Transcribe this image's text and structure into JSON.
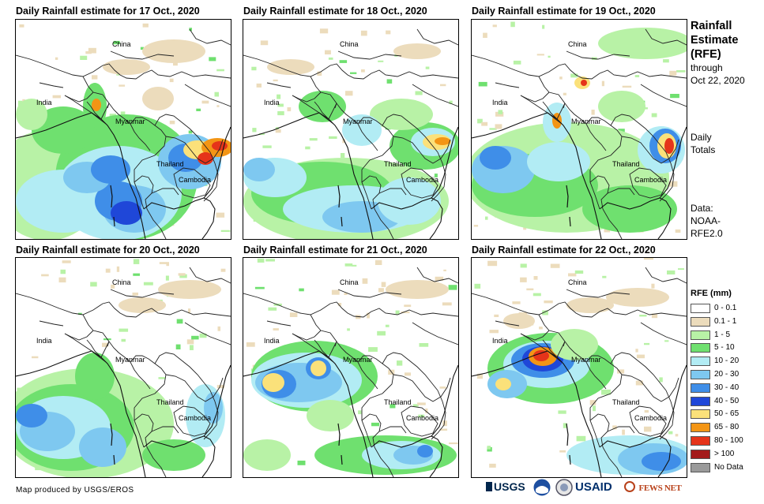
{
  "panels": [
    {
      "title": "Daily Rainfall estimate for 17 Oct., 2020"
    },
    {
      "title": "Daily Rainfall estimate for 18 Oct., 2020"
    },
    {
      "title": "Daily Rainfall estimate for 19 Oct., 2020"
    },
    {
      "title": "Daily Rainfall estimate for 20 Oct., 2020"
    },
    {
      "title": "Daily Rainfall estimate for 21 Oct., 2020"
    },
    {
      "title": "Daily Rainfall estimate for 22 Oct., 2020"
    }
  ],
  "map_labels": {
    "china": "China",
    "india": "India",
    "myanmar": "Myanmar",
    "thailand": "Thailand",
    "cambodia": "Cambodia"
  },
  "sidebar": {
    "title_line1": "Rainfall",
    "title_line2": "Estimate",
    "title_line3": "(RFE)",
    "through": "through",
    "date": "Oct 22, 2020",
    "daily_line1": "Daily",
    "daily_line2": "Totals",
    "data_line1": "Data:",
    "data_line2": "NOAA-",
    "data_line3": "RFE2.0"
  },
  "legend": {
    "title": "RFE (mm)",
    "items": [
      {
        "label": "0 - 0.1",
        "color": "#ffffff"
      },
      {
        "label": "0.1 - 1",
        "color": "#ecdcbc"
      },
      {
        "label": "1 - 5",
        "color": "#b8f2a6"
      },
      {
        "label": "5 - 10",
        "color": "#6fe06f"
      },
      {
        "label": "10 - 20",
        "color": "#b2ecf4"
      },
      {
        "label": "20 - 30",
        "color": "#7ec8f0"
      },
      {
        "label": "30 - 40",
        "color": "#3f8ee8"
      },
      {
        "label": "40 - 50",
        "color": "#1f47d8"
      },
      {
        "label": "50 - 65",
        "color": "#fbe17a"
      },
      {
        "label": "65 - 80",
        "color": "#f39515"
      },
      {
        "label": "80 - 100",
        "color": "#e5341a"
      },
      {
        "label": "> 100",
        "color": "#a31a1a"
      },
      {
        "label": "No Data",
        "color": "#9a9a9a"
      }
    ]
  },
  "footer": {
    "credit": "Map produced by USGS/EROS"
  },
  "logos": {
    "usgs": "USGS",
    "noaa": "NOAA",
    "usaid": "USAID",
    "fewsnet": "FEWS NET"
  }
}
